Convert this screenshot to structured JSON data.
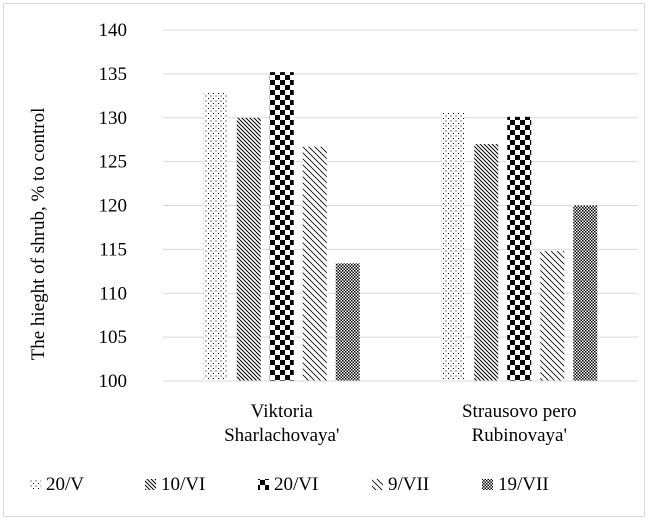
{
  "chart_data": {
    "type": "bar",
    "title": "",
    "xlabel": "",
    "ylabel": "The hieght of shrub, % to control",
    "ylim": [
      100,
      140
    ],
    "yticks": [
      100,
      105,
      110,
      115,
      120,
      125,
      130,
      135,
      140
    ],
    "grid": true,
    "legend_position": "bottom",
    "categories": [
      [
        "Viktoria",
        "Sharlachovaya'"
      ],
      [
        "Strausovo pero",
        "Rubinovaya'"
      ]
    ],
    "series": [
      {
        "name": "20/V",
        "values": [
          133.0,
          130.7
        ],
        "pattern": "dots-sparse"
      },
      {
        "name": "10/VI",
        "values": [
          130.0,
          127.0
        ],
        "pattern": "diag-dense"
      },
      {
        "name": "20/VI",
        "values": [
          135.2,
          130.1
        ],
        "pattern": "checker"
      },
      {
        "name": "9/VII",
        "values": [
          126.7,
          114.8
        ],
        "pattern": "diag-wide"
      },
      {
        "name": "19/VII",
        "values": [
          113.4,
          120.0
        ],
        "pattern": "dots-dense"
      }
    ]
  }
}
